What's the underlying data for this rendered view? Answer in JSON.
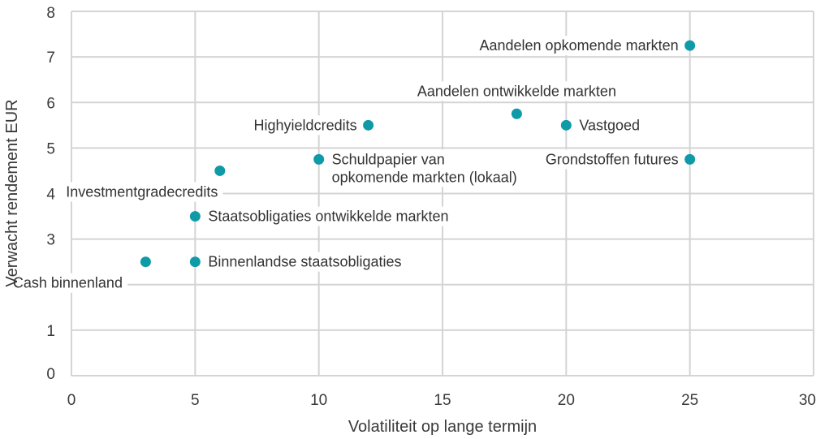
{
  "chart_data": {
    "type": "scatter",
    "xlabel": "Volatiliteit op lange termijn",
    "ylabel": "Verwacht rendement EUR",
    "xlim": [
      0,
      30
    ],
    "ylim": [
      0,
      8
    ],
    "xticks": [
      0,
      5,
      10,
      15,
      20,
      25,
      30
    ],
    "yticks": [
      0,
      1,
      2,
      3,
      4,
      5,
      6,
      7,
      8
    ],
    "grid": true,
    "marker_color": "#0f9aa8",
    "points": [
      {
        "label": "Cash binnenland",
        "x": 3,
        "y": 2.5,
        "label_pos": "below-left"
      },
      {
        "label": "Binnenlandse staatsobligaties",
        "x": 5,
        "y": 2.5,
        "label_pos": "right"
      },
      {
        "label": "Staatsobligaties ontwikkelde markten",
        "x": 5,
        "y": 3.5,
        "label_pos": "right"
      },
      {
        "label": "Investmentgradecredits",
        "x": 6,
        "y": 4.5,
        "label_pos": "below-left"
      },
      {
        "label": "Schuldpapier van opkomende markten (lokaal)",
        "lines": [
          "Schuldpapier van",
          "opkomende markten (lokaal)"
        ],
        "x": 10,
        "y": 4.75,
        "label_pos": "right"
      },
      {
        "label": "Highyieldcredits",
        "x": 12,
        "y": 5.5,
        "label_pos": "left"
      },
      {
        "label": "Aandelen ontwikkelde markten",
        "x": 18,
        "y": 5.75,
        "label_pos": "above"
      },
      {
        "label": "Vastgoed",
        "x": 20,
        "y": 5.5,
        "label_pos": "right"
      },
      {
        "label": "Grondstoffen futures",
        "x": 25,
        "y": 4.75,
        "label_pos": "left"
      },
      {
        "label": "Aandelen opkomende markten",
        "x": 25,
        "y": 7.25,
        "label_pos": "left"
      }
    ]
  }
}
